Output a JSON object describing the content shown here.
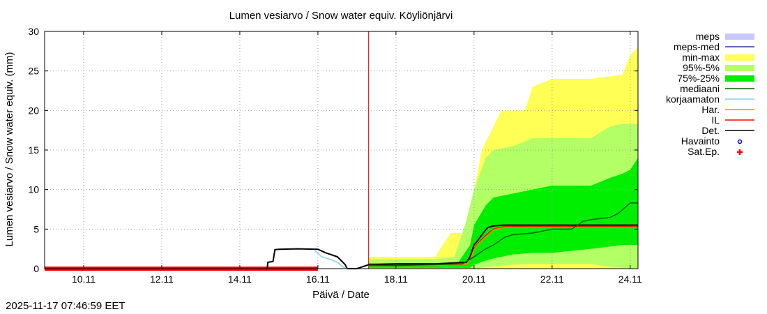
{
  "chart_data": {
    "type": "line",
    "title": "Lumen vesiarvo / Snow water equiv.  Köyliönjärvi",
    "xlabel": "Päivä / Date",
    "ylabel": "Lumen vesiarvo / Snow water equiv. (mm)",
    "xlim": [
      0,
      15.2
    ],
    "ylim": [
      0,
      30
    ],
    "grid": true,
    "legend_position": "right, outside",
    "forecast_start_x": 8.3,
    "x_ticks": [
      {
        "x": 1,
        "label": "10.11"
      },
      {
        "x": 3,
        "label": "12.11"
      },
      {
        "x": 5,
        "label": "14.11"
      },
      {
        "x": 7,
        "label": "16.11"
      },
      {
        "x": 9,
        "label": "18.11"
      },
      {
        "x": 11,
        "label": "20.11"
      },
      {
        "x": 13,
        "label": "22.11"
      },
      {
        "x": 15,
        "label": "24.11"
      }
    ],
    "y_ticks": [
      0,
      5,
      10,
      15,
      20,
      25,
      30
    ],
    "bands": [
      {
        "name": "min-max",
        "color": "#ffff55",
        "x": [
          8.3,
          9.0,
          10.0,
          10.4,
          10.8,
          11.0,
          11.2,
          11.4,
          11.7,
          12.0,
          12.3,
          12.5,
          13.0,
          14.0,
          14.8,
          15.0,
          15.2
        ],
        "upper": [
          1.5,
          1.5,
          1.5,
          4.5,
          4.5,
          10.0,
          15.0,
          17.0,
          20.0,
          20.0,
          20.0,
          23.0,
          24.0,
          24.0,
          24.5,
          27.0,
          28.0
        ],
        "lower": [
          0.0,
          0.0,
          0.0,
          0.0,
          0.0,
          0.0,
          0.0,
          0.0,
          0.0,
          0.0,
          0.0,
          0.0,
          0.0,
          0.0,
          0.0,
          0.0,
          0.0
        ]
      },
      {
        "name": "95%-5%",
        "color": "#b3ff66",
        "x": [
          8.3,
          9.0,
          10.0,
          10.5,
          10.8,
          11.0,
          11.3,
          11.5,
          12.0,
          12.5,
          13.0,
          14.0,
          14.5,
          14.8,
          15.0,
          15.2
        ],
        "upper": [
          1.2,
          1.2,
          1.2,
          1.5,
          6.0,
          10.0,
          14.0,
          15.0,
          15.5,
          16.5,
          16.5,
          16.5,
          18.0,
          18.3,
          18.3,
          18.3
        ],
        "lower": [
          0.0,
          0.0,
          0.0,
          0.0,
          0.0,
          0.0,
          0.2,
          0.3,
          0.5,
          0.6,
          0.6,
          0.6,
          0.2,
          0.1,
          0.0,
          0.0
        ]
      },
      {
        "name": "75%-25%",
        "color": "#00ee00",
        "x": [
          8.3,
          9.0,
          10.0,
          10.6,
          10.9,
          11.0,
          11.3,
          11.5,
          12.0,
          12.5,
          13.0,
          14.0,
          14.5,
          14.8,
          15.0,
          15.2
        ],
        "upper": [
          0.7,
          0.7,
          0.7,
          0.8,
          3.0,
          5.5,
          8.0,
          9.0,
          9.5,
          10.0,
          10.5,
          10.5,
          11.5,
          12.0,
          12.5,
          14.0
        ],
        "lower": [
          0.1,
          0.1,
          0.1,
          0.1,
          0.1,
          0.5,
          1.0,
          1.3,
          1.8,
          2.0,
          2.0,
          2.5,
          2.8,
          3.0,
          3.0,
          3.0
        ]
      }
    ],
    "series": [
      {
        "name": "Det.",
        "color": "#000000",
        "x": [
          5.7,
          5.72,
          5.85,
          5.9,
          6.0,
          6.5,
          7.0,
          7.2,
          7.5,
          7.7,
          7.75,
          8.0,
          8.3,
          9.0,
          10.0,
          10.8,
          10.9,
          11.0,
          11.1,
          11.25,
          11.35,
          11.5,
          11.75,
          12.0,
          14.0,
          15.2
        ],
        "y": [
          0,
          0.8,
          0.9,
          2.4,
          2.45,
          2.5,
          2.45,
          2.0,
          1.5,
          0.5,
          0,
          0,
          0.5,
          0.6,
          0.6,
          0.8,
          1.5,
          3.0,
          3.6,
          4.6,
          5.2,
          5.4,
          5.5,
          5.5,
          5.5,
          5.5
        ]
      },
      {
        "name": "korjaamaton",
        "color": "#87ceeb",
        "x": [
          6.9,
          7.1,
          7.3,
          7.5,
          7.65,
          7.75
        ],
        "y": [
          2.4,
          1.5,
          1.2,
          0.8,
          0.2,
          0
        ]
      },
      {
        "name": "IL",
        "color": "#ff0000",
        "x": [
          8.3,
          9.0,
          10.0,
          10.8,
          10.9,
          11.0,
          11.1,
          11.3,
          11.5,
          11.75,
          12.0,
          14.0,
          15.2
        ],
        "y": [
          0.4,
          0.4,
          0.4,
          0.5,
          1.2,
          2.5,
          3.2,
          4.2,
          5.0,
          5.3,
          5.3,
          5.3,
          5.3
        ]
      },
      {
        "name": "Har.",
        "color": "#ff8800",
        "x": [
          8.3,
          9.0,
          10.0,
          10.8,
          10.9,
          11.0,
          11.1,
          11.3,
          11.5,
          11.75,
          12.0,
          14.0,
          15.2
        ],
        "y": [
          0.4,
          0.4,
          0.4,
          0.5,
          1.1,
          2.4,
          3.1,
          4.0,
          4.9,
          5.2,
          5.2,
          5.2,
          5.2
        ]
      },
      {
        "name": "mediaani",
        "color": "#006400",
        "x": [
          8.3,
          9.0,
          10.0,
          10.7,
          11.0,
          11.3,
          11.5,
          11.8,
          12.0,
          12.5,
          13.0,
          13.5,
          13.8,
          14.0,
          14.5,
          14.7,
          15.0,
          15.2
        ],
        "y": [
          0.4,
          0.4,
          0.5,
          0.6,
          1.5,
          2.5,
          3.0,
          4.0,
          4.3,
          4.5,
          5.0,
          5.0,
          6.0,
          6.2,
          6.5,
          7.0,
          8.3,
          8.3
        ]
      }
    ],
    "observations": [
      {
        "name": "Sat.Ep.",
        "color": "#ff0000",
        "x_start": 0,
        "x_end": 7.0,
        "y": 0
      }
    ],
    "legend": [
      {
        "label": "meps",
        "kind": "band",
        "color": "#c8c8ff"
      },
      {
        "label": "meps-med",
        "kind": "line",
        "color": "#3333aa"
      },
      {
        "label": "min-max",
        "kind": "band",
        "color": "#ffff55"
      },
      {
        "label": "95%-5%",
        "kind": "band",
        "color": "#b3ff66"
      },
      {
        "label": "75%-25%",
        "kind": "band",
        "color": "#00ee00"
      },
      {
        "label": "mediaani",
        "kind": "line",
        "color": "#006400"
      },
      {
        "label": "korjaamaton",
        "kind": "line",
        "color": "#87ceeb"
      },
      {
        "label": "Har.",
        "kind": "line",
        "color": "#ff8800"
      },
      {
        "label": "IL",
        "kind": "line",
        "color": "#ff0000"
      },
      {
        "label": "Det.",
        "kind": "line",
        "color": "#000000"
      },
      {
        "label": "Havainto",
        "kind": "circle",
        "color": "#0000cc"
      },
      {
        "label": "Sat.Ep.",
        "kind": "plus",
        "color": "#ff0000"
      }
    ]
  },
  "timestamp": "2025-11-17 07:46:59 EET"
}
